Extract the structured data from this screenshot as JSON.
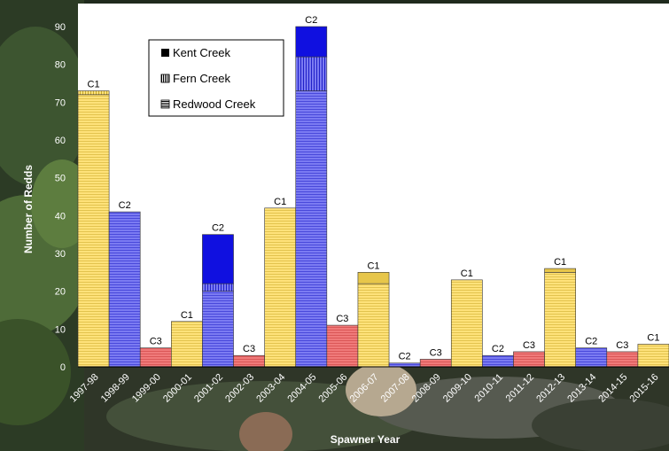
{
  "chart_data": {
    "type": "bar",
    "stacked": true,
    "categories": [
      "1997-98",
      "1998-99",
      "1999-00",
      "2000-01",
      "2001-02",
      "2002-03",
      "2003-04",
      "2004-05",
      "2005-06",
      "2006-07",
      "2007-08",
      "2008-09",
      "2009-10",
      "2010-11",
      "2011-12",
      "2012-13",
      "2013-14",
      "2014-15",
      "2015-16"
    ],
    "cohorts": [
      "C1",
      "C2",
      "C3",
      "C1",
      "C2",
      "C3",
      "C1",
      "C2",
      "C3",
      "C1",
      "C2",
      "C3",
      "C1",
      "C2",
      "C3",
      "C1",
      "C2",
      "C3",
      "C1"
    ],
    "cohort_colors": {
      "C1": "#ffe27a",
      "C2": "#7b7bf2",
      "C3": "#f07a7a"
    },
    "series": [
      {
        "name": "Redwood Creek",
        "values": [
          72,
          41,
          5,
          12,
          20,
          3,
          42,
          73,
          11,
          22,
          1,
          2,
          23,
          3,
          4,
          25,
          5,
          4,
          6
        ]
      },
      {
        "name": "Fern Creek",
        "values": [
          1,
          0,
          0,
          0,
          2,
          0,
          0,
          9,
          0,
          0,
          0,
          0,
          0,
          0,
          0,
          0,
          0,
          0,
          0
        ]
      },
      {
        "name": "Kent Creek",
        "values": [
          0,
          0,
          0,
          0,
          13,
          0,
          0,
          8,
          0,
          3,
          0,
          0,
          0,
          0,
          0,
          1,
          0,
          0,
          0
        ]
      }
    ],
    "ylim": [
      0,
      90
    ],
    "ytick_labels": [
      "0",
      "10",
      "20",
      "30",
      "40",
      "50",
      "60",
      "70",
      "80",
      "90"
    ],
    "xlabel": "Spawner Year",
    "ylabel": "Number of Redds",
    "legend_position": "top-left",
    "grid": false
  }
}
